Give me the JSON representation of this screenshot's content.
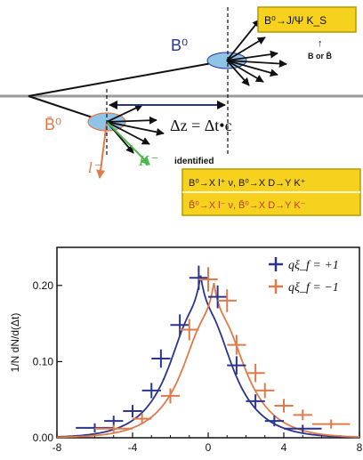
{
  "diagram": {
    "top_box_label": "B⁰→J/Ψ K_S",
    "b_or_bbar": "B or B̄",
    "b0_label": "B⁰",
    "b0bar_label": "B̄⁰",
    "delta_z": "Δz = Δt•c",
    "lepton_label": "l⁻",
    "kaon_label": "K⁻",
    "identified": "identified",
    "box_line1": "B⁰→X l⁺ ν, B⁰→X D→Y K⁺",
    "box_line2": "B̄⁰→X l⁻ ν, B̄⁰→X D→Y K⁻"
  },
  "colors": {
    "box_fill": "#f6d21e",
    "box_stroke": "#b49b00",
    "blue": "#2a3590",
    "orange": "#e07a4a",
    "green": "#49b84a",
    "ellipse_fill": "#8fc3e8"
  },
  "chart_data": {
    "type": "scatter",
    "title": "",
    "xlabel": "",
    "ylabel": "1/N dN/d(Δt)",
    "xlim": [
      -8,
      8
    ],
    "ylim": [
      0,
      0.25
    ],
    "xticks": [
      -8,
      -4,
      0,
      4,
      8
    ],
    "yticks": [
      0.0,
      0.1,
      0.2
    ],
    "ytick_labels": [
      "0.00",
      "0.10",
      "0.20"
    ],
    "legend_position": "top-right",
    "series": [
      {
        "name": "qξ_f = +1",
        "color": "#2a3590",
        "points": [
          {
            "x": -6.0,
            "y": 0.013,
            "ex": 1.0,
            "ey": 0.006
          },
          {
            "x": -5.0,
            "y": 0.022,
            "ex": 0.5,
            "ey": 0.007
          },
          {
            "x": -4.0,
            "y": 0.035,
            "ex": 0.5,
            "ey": 0.008
          },
          {
            "x": -3.0,
            "y": 0.062,
            "ex": 0.5,
            "ey": 0.01
          },
          {
            "x": -2.5,
            "y": 0.104,
            "ex": 0.5,
            "ey": 0.012
          },
          {
            "x": -1.5,
            "y": 0.148,
            "ex": 0.5,
            "ey": 0.014
          },
          {
            "x": -0.5,
            "y": 0.21,
            "ex": 0.5,
            "ey": 0.016
          },
          {
            "x": 0.5,
            "y": 0.185,
            "ex": 0.5,
            "ey": 0.015
          },
          {
            "x": 1.5,
            "y": 0.095,
            "ex": 0.5,
            "ey": 0.012
          },
          {
            "x": 2.5,
            "y": 0.048,
            "ex": 0.5,
            "ey": 0.009
          },
          {
            "x": 3.5,
            "y": 0.022,
            "ex": 0.5,
            "ey": 0.007
          },
          {
            "x": 5.0,
            "y": 0.012,
            "ex": 1.0,
            "ey": 0.005
          }
        ]
      },
      {
        "name": "qξ_f = −1",
        "color": "#e07a4a",
        "points": [
          {
            "x": -5.0,
            "y": 0.012,
            "ex": 1.0,
            "ey": 0.005
          },
          {
            "x": -3.5,
            "y": 0.025,
            "ex": 0.5,
            "ey": 0.007
          },
          {
            "x": -2.0,
            "y": 0.055,
            "ex": 0.5,
            "ey": 0.01
          },
          {
            "x": -1.0,
            "y": 0.142,
            "ex": 0.5,
            "ey": 0.014
          },
          {
            "x": 0.0,
            "y": 0.208,
            "ex": 0.5,
            "ey": 0.016
          },
          {
            "x": 1.0,
            "y": 0.18,
            "ex": 0.5,
            "ey": 0.015
          },
          {
            "x": 1.5,
            "y": 0.122,
            "ex": 0.5,
            "ey": 0.013
          },
          {
            "x": 2.5,
            "y": 0.085,
            "ex": 0.5,
            "ey": 0.012
          },
          {
            "x": 3.0,
            "y": 0.062,
            "ex": 0.5,
            "ey": 0.01
          },
          {
            "x": 4.0,
            "y": 0.042,
            "ex": 0.5,
            "ey": 0.009
          },
          {
            "x": 5.0,
            "y": 0.03,
            "ex": 0.5,
            "ey": 0.007
          },
          {
            "x": 6.5,
            "y": 0.018,
            "ex": 1.0,
            "ey": 0.006
          }
        ]
      }
    ],
    "curves": [
      {
        "series": "qξ_f = +1",
        "mu": -0.4,
        "amp": 0.213
      },
      {
        "series": "qξ_f = −1",
        "mu": 0.3,
        "amp": 0.203
      }
    ]
  }
}
